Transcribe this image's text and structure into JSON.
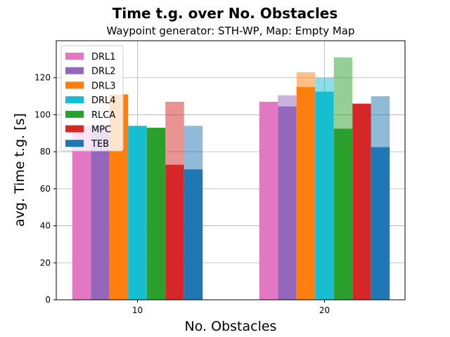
{
  "chart_data": {
    "type": "bar",
    "title": "Time t.g. over No. Obstacles",
    "subtitle": "Waypoint generator: STH-WP, Map: Empty Map",
    "xlabel": "No. Obstacles",
    "ylabel": "avg. Time t.g. [s]",
    "categories": [
      "10",
      "20"
    ],
    "ylim": [
      0,
      140
    ],
    "yticks": [
      0,
      20,
      40,
      60,
      80,
      100,
      120
    ],
    "grid": true,
    "legend_position": "top-left",
    "series": [
      {
        "name": "DRL1",
        "color": "#e377c2",
        "values": [
          94,
          107
        ],
        "upper": [
          94,
          107
        ]
      },
      {
        "name": "DRL2",
        "color": "#9467bd",
        "values": [
          94,
          104.5
        ],
        "upper": [
          94,
          110.5
        ]
      },
      {
        "name": "DRL3",
        "color": "#ff7f0e",
        "values": [
          111,
          115
        ],
        "upper": [
          111,
          123
        ]
      },
      {
        "name": "DRL4",
        "color": "#17becf",
        "values": [
          94,
          112.5
        ],
        "upper": [
          94,
          120
        ]
      },
      {
        "name": "RLCA",
        "color": "#2ca02c",
        "values": [
          93,
          92.5
        ],
        "upper": [
          93,
          131
        ]
      },
      {
        "name": "MPC",
        "color": "#d62728",
        "values": [
          73,
          106
        ],
        "upper": [
          107,
          106
        ]
      },
      {
        "name": "TEB",
        "color": "#1f77b4",
        "values": [
          70.5,
          82.5
        ],
        "upper": [
          94,
          110
        ]
      }
    ]
  }
}
